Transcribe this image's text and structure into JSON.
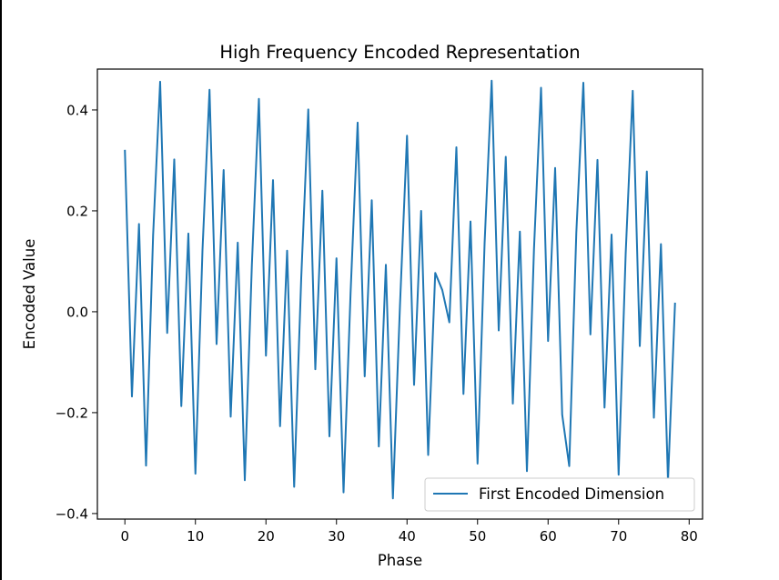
{
  "colors": {
    "line": "#1f77b4",
    "axes": "#000000",
    "background": "#ffffff",
    "legend_border": "#cccccc"
  },
  "chart_data": {
    "type": "line",
    "title": "High Frequency Encoded Representation",
    "xlabel": "Phase",
    "ylabel": "Encoded Value",
    "xlim": [
      -3.9,
      81.9
    ],
    "ylim": [
      -0.411,
      0.481
    ],
    "xticks": [
      0,
      10,
      20,
      30,
      40,
      50,
      60,
      70,
      80
    ],
    "yticks": [
      -0.4,
      -0.2,
      0.0,
      0.2,
      0.4
    ],
    "xtick_labels": [
      "0",
      "10",
      "20",
      "30",
      "40",
      "50",
      "60",
      "70",
      "80"
    ],
    "ytick_labels": [
      "−0.4",
      "−0.2",
      "0.0",
      "0.2",
      "0.4"
    ],
    "grid": false,
    "legend_position": "lower-right",
    "series": [
      {
        "name": "First Encoded Dimension",
        "x": [
          0,
          1,
          2,
          3,
          4,
          5,
          6,
          7,
          8,
          9,
          10,
          11,
          12,
          13,
          14,
          15,
          16,
          17,
          18,
          19,
          20,
          21,
          22,
          23,
          24,
          25,
          26,
          27,
          28,
          29,
          30,
          31,
          32,
          33,
          34,
          35,
          36,
          37,
          38,
          39,
          40,
          41,
          42,
          43,
          44,
          45,
          46,
          47,
          48,
          49,
          50,
          51,
          52,
          53,
          54,
          55,
          56,
          57,
          58,
          59,
          60,
          61,
          62,
          63,
          64,
          65,
          66,
          67,
          68,
          69,
          70,
          71,
          72,
          73,
          74,
          75,
          76,
          77,
          78
        ],
        "values": [
          0.321,
          -0.168,
          0.174,
          -0.305,
          0.151,
          0.456,
          -0.042,
          0.302,
          -0.187,
          0.155,
          -0.321,
          0.121,
          0.44,
          -0.064,
          0.281,
          -0.208,
          0.137,
          -0.334,
          0.092,
          0.422,
          -0.087,
          0.261,
          -0.227,
          0.121,
          -0.347,
          0.066,
          0.401,
          -0.114,
          0.24,
          -0.247,
          0.106,
          -0.358,
          0.038,
          0.375,
          -0.128,
          0.221,
          -0.267,
          0.093,
          -0.37,
          0.012,
          0.349,
          -0.145,
          0.2,
          -0.284,
          0.077,
          0.043,
          -0.021,
          0.326,
          -0.163,
          0.179,
          -0.301,
          0.136,
          0.458,
          -0.037,
          0.307,
          -0.182,
          0.159,
          -0.316,
          0.124,
          0.444,
          -0.058,
          0.285,
          -0.204,
          -0.306,
          0.156,
          0.454,
          -0.045,
          0.301,
          -0.19,
          0.153,
          -0.323,
          0.115,
          0.438,
          -0.068,
          0.278,
          -0.21,
          0.134,
          -0.335,
          0.018
        ]
      }
    ]
  }
}
